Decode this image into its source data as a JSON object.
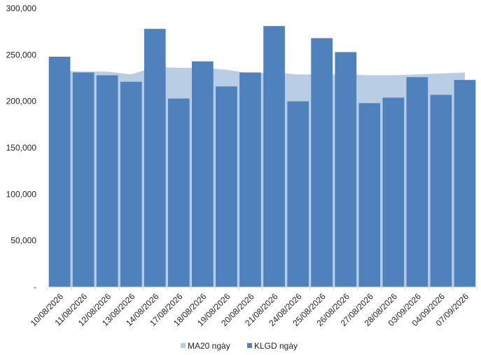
{
  "chart_data": {
    "type": "bar",
    "title": "",
    "xlabel": "",
    "ylabel": "",
    "ylim": [
      0,
      300000
    ],
    "yticks": [
      {
        "value": 0,
        "label": "-"
      },
      {
        "value": 50000,
        "label": "50,000"
      },
      {
        "value": 100000,
        "label": "100,000"
      },
      {
        "value": 150000,
        "label": "150,000"
      },
      {
        "value": 200000,
        "label": "200,000"
      },
      {
        "value": 250000,
        "label": "250,000"
      },
      {
        "value": 300000,
        "label": "300,000"
      }
    ],
    "categories": [
      "10/08/2026",
      "11/08/2026",
      "12/08/2026",
      "13/08/2026",
      "14/08/2026",
      "17/08/2026",
      "18/08/2026",
      "19/08/2026",
      "20/08/2026",
      "21/08/2026",
      "24/08/2026",
      "25/08/2026",
      "26/08/2026",
      "27/08/2026",
      "28/08/2026",
      "03/09/2026",
      "04/09/2026",
      "07/09/2026"
    ],
    "series": [
      {
        "name": "MA20 ngày",
        "type": "area",
        "color": "#b9cde5",
        "values": [
          233000,
          232000,
          232000,
          229000,
          237000,
          236000,
          236000,
          234000,
          230000,
          231000,
          229000,
          229000,
          229000,
          228000,
          228000,
          229000,
          230000,
          231000
        ]
      },
      {
        "name": "KLGD ngày",
        "type": "bar",
        "color": "#4f81bd",
        "values": [
          248000,
          231000,
          228000,
          221000,
          278000,
          203000,
          243000,
          216000,
          231000,
          281000,
          200000,
          268000,
          253000,
          198000,
          204000,
          226000,
          207000,
          223000
        ]
      }
    ],
    "legend": {
      "position": "bottom"
    },
    "grid": false
  }
}
